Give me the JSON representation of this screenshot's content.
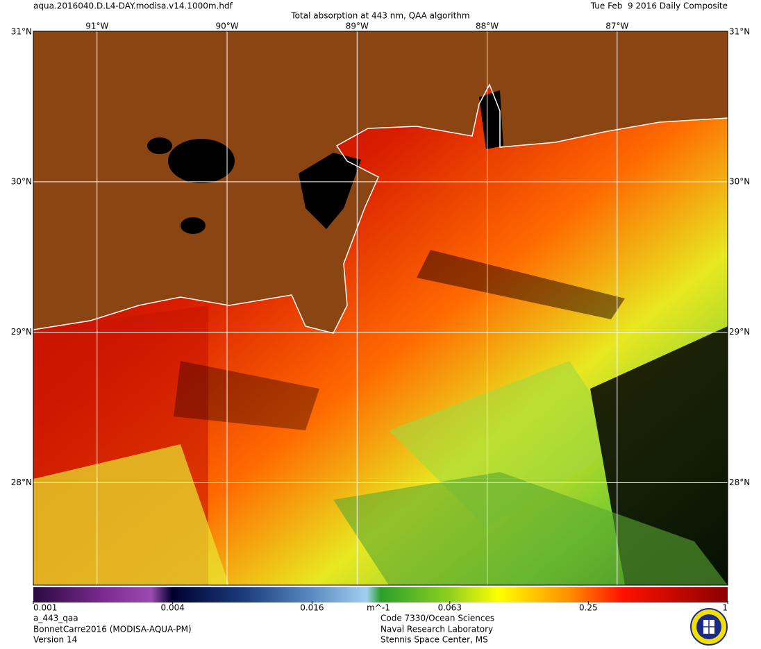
{
  "header": {
    "filename": "aqua.2016040.D.L4-DAY.modisa.v14.1000m.hdf",
    "title": "Total absorption at 443 nm, QAA algorithm",
    "date": "Tue Feb  9 2016 Daily Composite"
  },
  "map": {
    "lon_range": [
      -91.49,
      -86.15
    ],
    "lat_range": [
      27.32,
      31.0
    ],
    "lon_ticks": [
      {
        "value": -91,
        "label": "91°W"
      },
      {
        "value": -90,
        "label": "90°W"
      },
      {
        "value": -89,
        "label": "89°W"
      },
      {
        "value": -88,
        "label": "88°W"
      },
      {
        "value": -87,
        "label": "87°W"
      }
    ],
    "lat_ticks": [
      {
        "value": 31,
        "label": "31°N"
      },
      {
        "value": 30,
        "label": "30°N"
      },
      {
        "value": 29,
        "label": "29°N"
      },
      {
        "value": 28,
        "label": "28°N"
      }
    ]
  },
  "colorbar": {
    "scale": "log",
    "range": [
      0.001,
      1
    ],
    "ticks": [
      0.001,
      0.004,
      0.016,
      0.063,
      0.25,
      1
    ],
    "unit": "m^-1"
  },
  "footer": {
    "left": [
      "a_443_qaa",
      "BonnetCarre2016 (MODISA-AQUA-PM)",
      "Version 14"
    ],
    "center": [
      "Code 7330/Ocean Sciences",
      "Naval Research Laboratory",
      "Stennis Space Center, MS"
    ]
  }
}
